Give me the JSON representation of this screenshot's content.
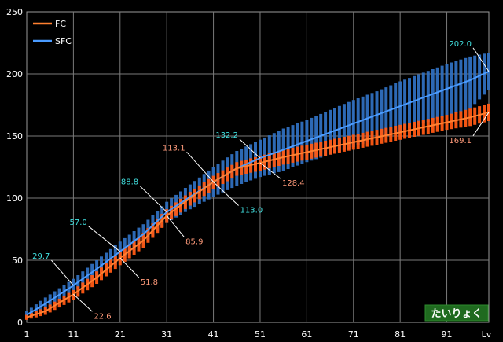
{
  "chart_data": {
    "type": "line",
    "xlabel": "Lv",
    "ylim": [
      0,
      250
    ],
    "xlim": [
      1,
      100
    ],
    "x_ticks": [
      "1",
      "11",
      "21",
      "31",
      "41",
      "51",
      "61",
      "71",
      "81",
      "91",
      "Lv"
    ],
    "y_ticks": [
      "0",
      "50",
      "100",
      "150",
      "200",
      "250"
    ],
    "grid": true,
    "legend_position": "top-left",
    "badge": "たいりょく",
    "series": [
      {
        "name": "FC",
        "color": "#ff5a14",
        "line_color": "#ff8030",
        "x": [
          1,
          5,
          11,
          16,
          21,
          26,
          31,
          36,
          41,
          46,
          51,
          56,
          61,
          66,
          71,
          76,
          81,
          86,
          91,
          96,
          100
        ],
        "y": [
          4,
          9,
          22.6,
          36,
          51.8,
          66,
          85.9,
          100,
          113.1,
          124,
          128.4,
          133,
          137,
          141,
          145,
          149,
          153,
          157,
          161,
          165,
          169.1
        ],
        "range_low": [
          2,
          6,
          18,
          31,
          46,
          60,
          80,
          94,
          107,
          118,
          122,
          127,
          131,
          135,
          139,
          143,
          147,
          151,
          155,
          158,
          162
        ],
        "range_high": [
          6,
          12,
          26,
          41,
          57,
          72,
          91,
          105,
          118,
          129,
          134,
          139,
          143,
          147,
          151,
          155,
          159,
          163,
          167,
          172,
          176
        ]
      },
      {
        "name": "SFC",
        "color": "#2f6fbf",
        "line_color": "#4a9bff",
        "x": [
          1,
          5,
          11,
          16,
          21,
          26,
          31,
          36,
          41,
          46,
          51,
          56,
          61,
          66,
          71,
          76,
          81,
          86,
          91,
          96,
          100
        ],
        "y": [
          6,
          15,
          29.7,
          43,
          57.0,
          71,
          88.8,
          101,
          113.0,
          124,
          132.2,
          139,
          146,
          153,
          160,
          167,
          174,
          181,
          188,
          195,
          202.0
        ],
        "range_low": [
          3,
          10,
          24,
          36,
          49,
          63,
          80,
          91,
          101,
          110,
          117,
          122,
          129,
          135,
          141,
          148,
          154,
          160,
          166,
          172,
          187
        ],
        "range_high": [
          9,
          20,
          35,
          50,
          65,
          79,
          97,
          111,
          125,
          138,
          147,
          156,
          163,
          171,
          179,
          186,
          194,
          201,
          208,
          214,
          217
        ]
      }
    ],
    "annotations": [
      {
        "text": "29.7",
        "series": "SFC",
        "x": 11,
        "y": 29.7
      },
      {
        "text": "57.0",
        "series": "SFC",
        "x": 21,
        "y": 57.0
      },
      {
        "text": "88.8",
        "series": "SFC",
        "x": 31,
        "y": 88.8
      },
      {
        "text": "113.0",
        "series": "SFC",
        "x": 41,
        "y": 113.0
      },
      {
        "text": "132.2",
        "series": "SFC",
        "x": 51,
        "y": 132.2
      },
      {
        "text": "202.0",
        "series": "SFC",
        "x": 100,
        "y": 202.0
      },
      {
        "text": "22.6",
        "series": "FC",
        "x": 11,
        "y": 22.6
      },
      {
        "text": "51.8",
        "series": "FC",
        "x": 21,
        "y": 51.8
      },
      {
        "text": "85.9",
        "series": "FC",
        "x": 31,
        "y": 85.9
      },
      {
        "text": "113.1",
        "series": "FC",
        "x": 41,
        "y": 113.1
      },
      {
        "text": "128.4",
        "series": "FC",
        "x": 51,
        "y": 128.4
      },
      {
        "text": "169.1",
        "series": "FC",
        "x": 100,
        "y": 169.1
      }
    ]
  }
}
